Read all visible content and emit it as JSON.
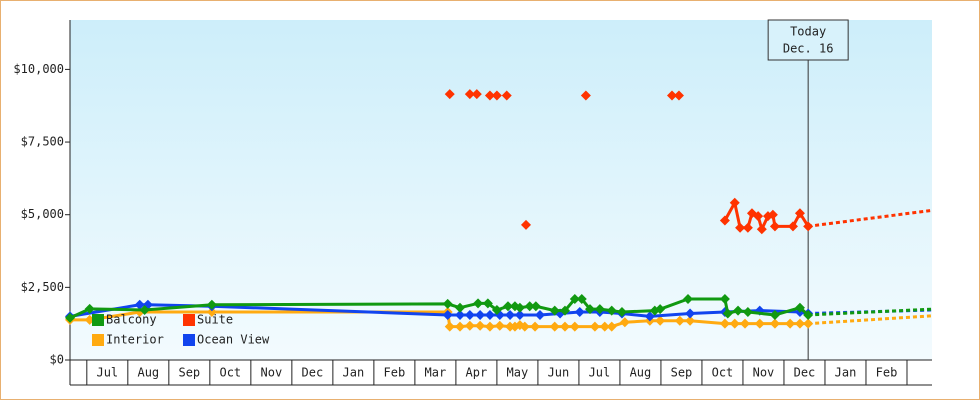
{
  "chart_data": {
    "type": "line",
    "categories": [
      "Jul",
      "Aug",
      "Sep",
      "Oct",
      "Nov",
      "Dec",
      "Jan",
      "Feb",
      "Mar",
      "Apr",
      "May",
      "Jun",
      "Jul",
      "Aug",
      "Sep",
      "Oct",
      "Nov",
      "Dec",
      "Jan",
      "Feb"
    ],
    "xlim": [
      -0.41,
      20.61
    ],
    "ylim": [
      0,
      11700
    ],
    "yticks": [
      {
        "value": 0,
        "label": "$0"
      },
      {
        "value": 2500,
        "label": "$2,500"
      },
      {
        "value": 5000,
        "label": "$5,000"
      },
      {
        "value": 7500,
        "label": "$7,500"
      },
      {
        "value": 10000,
        "label": "$10,000"
      }
    ],
    "legend": "lower left",
    "annotation": {
      "x": 17.59,
      "lines": [
        "Today",
        "Dec. 16"
      ]
    },
    "series": [
      {
        "name": "Balcony",
        "color": "#119911",
        "x": [
          -0.41,
          0.07,
          1.41,
          3.05,
          8.8,
          9.1,
          9.54,
          9.78,
          10.0,
          10.27,
          10.44,
          10.56,
          10.8,
          10.95,
          11.41,
          11.66,
          11.9,
          12.07,
          12.27,
          12.51,
          12.8,
          13.05,
          13.85,
          13.98,
          14.66,
          15.56,
          15.63,
          15.88,
          16.12,
          16.78,
          17.39,
          17.59
        ],
        "values": [
          1450,
          1760,
          1720,
          1900,
          1930,
          1800,
          1950,
          1950,
          1720,
          1850,
          1850,
          1800,
          1850,
          1850,
          1700,
          1700,
          2100,
          2100,
          1750,
          1750,
          1700,
          1650,
          1700,
          1750,
          2100,
          2100,
          1600,
          1700,
          1650,
          1550,
          1800,
          1550
        ],
        "forecast_x": [
          17.59,
          20.61
        ],
        "forecast_values": [
          1550,
          1750
        ]
      },
      {
        "name": "Suite",
        "color": "#ff3300",
        "x": [
          8.85,
          null,
          9.34,
          null,
          9.51,
          null,
          9.83,
          null,
          10.0,
          null,
          10.24,
          null,
          10.71,
          null,
          12.17,
          null,
          14.27,
          null,
          14.44,
          null,
          15.56,
          15.8,
          15.93,
          16.12,
          16.22,
          16.37,
          16.46,
          16.61,
          16.73,
          16.78,
          17.22,
          17.39,
          17.59
        ],
        "values": [
          9150,
          null,
          9150,
          null,
          9150,
          null,
          9100,
          null,
          9100,
          null,
          9100,
          null,
          4650,
          null,
          9100,
          null,
          9100,
          null,
          9100,
          null,
          4800,
          5410,
          4550,
          4550,
          5050,
          4950,
          4500,
          4950,
          5000,
          4600,
          4600,
          5050,
          4600
        ],
        "forecast_x": [
          17.59,
          20.61
        ],
        "forecast_values": [
          4600,
          5150
        ]
      },
      {
        "name": "Interior",
        "color": "#ffaa11",
        "x": [
          -0.41,
          0.07,
          1.29,
          3.05,
          8.8,
          8.85,
          9.1,
          9.34,
          9.59,
          9.83,
          10.07,
          10.32,
          10.44,
          10.56,
          10.68,
          10.93,
          11.41,
          11.66,
          11.9,
          12.39,
          12.63,
          12.8,
          13.12,
          13.73,
          13.98,
          14.46,
          14.71,
          15.56,
          15.8,
          16.05,
          16.41,
          16.78,
          17.15,
          17.39,
          17.59
        ],
        "values": [
          1380,
          1380,
          1650,
          1650,
          1650,
          1150,
          1150,
          1180,
          1180,
          1150,
          1180,
          1150,
          1150,
          1200,
          1150,
          1150,
          1150,
          1150,
          1150,
          1150,
          1150,
          1150,
          1300,
          1350,
          1350,
          1350,
          1350,
          1250,
          1250,
          1250,
          1250,
          1250,
          1250,
          1250,
          1250
        ],
        "forecast_x": [
          17.59,
          20.61
        ],
        "forecast_values": [
          1250,
          1520
        ]
      },
      {
        "name": "Ocean View",
        "color": "#1144ee",
        "x": [
          -0.41,
          1.29,
          1.49,
          3.05,
          8.8,
          9.1,
          9.34,
          9.59,
          9.83,
          10.07,
          10.32,
          10.56,
          11.05,
          11.54,
          12.02,
          12.51,
          13.05,
          13.73,
          14.71,
          15.56,
          16.41,
          17.39,
          17.59
        ],
        "values": [
          1500,
          1900,
          1900,
          1850,
          1550,
          1550,
          1550,
          1550,
          1550,
          1550,
          1550,
          1550,
          1550,
          1600,
          1650,
          1650,
          1600,
          1500,
          1600,
          1650,
          1700,
          1650,
          1600
        ],
        "forecast_x": [
          17.59,
          20.61
        ],
        "forecast_values": [
          1600,
          1720
        ]
      }
    ]
  }
}
